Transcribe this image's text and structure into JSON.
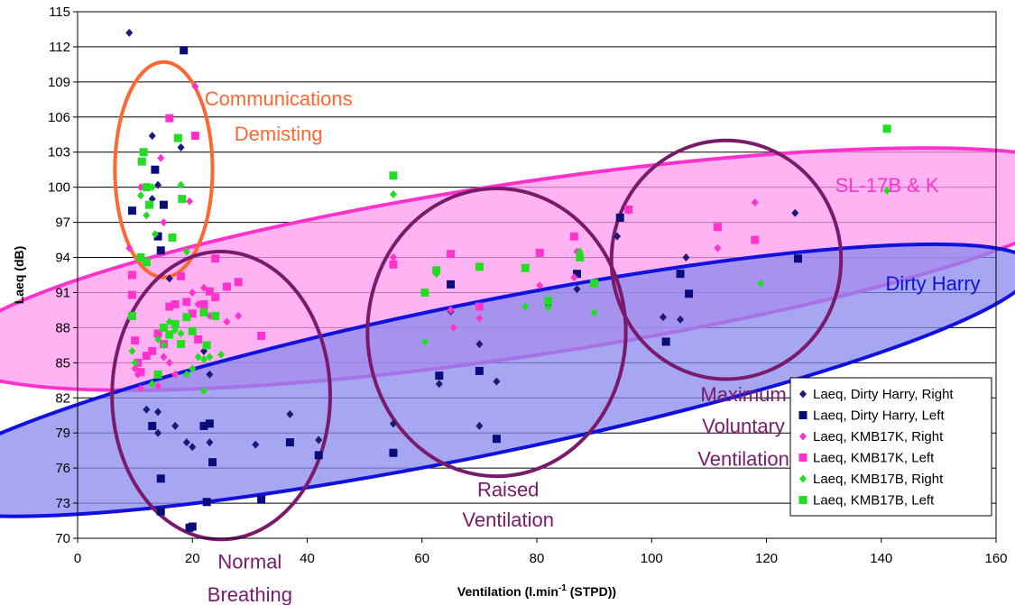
{
  "chart_data": {
    "type": "scatter",
    "xlabel": "Ventilation (l.min",
    "xlabel_sup": "-1",
    "xlabel_tail": " (STPD))",
    "ylabel": "Laeq (dB)",
    "xlim": [
      0,
      160
    ],
    "ylim": [
      70,
      115
    ],
    "xticks": [
      "0",
      "20",
      "40",
      "60",
      "80",
      "100",
      "120",
      "140",
      "160"
    ],
    "yticks": [
      "70",
      "73",
      "76",
      "79",
      "82",
      "85",
      "88",
      "91",
      "94",
      "97",
      "100",
      "103",
      "106",
      "109",
      "112",
      "115"
    ],
    "grid": "horizontal",
    "legend_position": "bottom-right",
    "series": [
      {
        "name": "Laeq, Dirty Harry, Right",
        "color": "#1a1a7a",
        "marker": "diamond",
        "points": [
          [
            9,
            113.2
          ],
          [
            13,
            104.4
          ],
          [
            14,
            100.2
          ],
          [
            18,
            103.4
          ],
          [
            13,
            99
          ],
          [
            16,
            92.2
          ],
          [
            12,
            81
          ],
          [
            14,
            80.8
          ],
          [
            17,
            79.6
          ],
          [
            14,
            79
          ],
          [
            19,
            78.2
          ],
          [
            20,
            77.8
          ],
          [
            23,
            78.2
          ],
          [
            22,
            86
          ],
          [
            23,
            84
          ],
          [
            31,
            78
          ],
          [
            37,
            80.6
          ],
          [
            42,
            78.4
          ],
          [
            55,
            79.8
          ],
          [
            63,
            83.2
          ],
          [
            65,
            89.4
          ],
          [
            73,
            83.4
          ],
          [
            70,
            79.6
          ],
          [
            70,
            86.6
          ],
          [
            82,
            90
          ],
          [
            87,
            91.3
          ],
          [
            94,
            95.8
          ],
          [
            102,
            88.9
          ],
          [
            105,
            88.7
          ],
          [
            106,
            94
          ],
          [
            125,
            97.8
          ]
        ]
      },
      {
        "name": "Laeq, Dirty Harry, Left",
        "color": "#0b0b7a",
        "marker": "square",
        "points": [
          [
            18.5,
            111.7
          ],
          [
            9.5,
            98
          ],
          [
            13.5,
            101.5
          ],
          [
            14,
            95.8
          ],
          [
            14.5,
            94.6
          ],
          [
            15,
            98.5
          ],
          [
            13,
            79.6
          ],
          [
            14.5,
            75.1
          ],
          [
            14.5,
            72.3
          ],
          [
            20,
            71
          ],
          [
            19.5,
            70.9
          ],
          [
            22,
            79.6
          ],
          [
            23,
            79.8
          ],
          [
            23.5,
            76.5
          ],
          [
            22.5,
            73.1
          ],
          [
            32,
            73.3
          ],
          [
            37,
            78.2
          ],
          [
            42,
            77.1
          ],
          [
            55,
            77.3
          ],
          [
            63,
            83.9
          ],
          [
            65,
            91.7
          ],
          [
            70,
            84.3
          ],
          [
            73,
            78.5
          ],
          [
            87,
            92.6
          ],
          [
            94.5,
            97.4
          ],
          [
            102.5,
            86.8
          ],
          [
            105,
            92.6
          ],
          [
            106.5,
            90.9
          ],
          [
            125.5,
            93.9
          ]
        ]
      },
      {
        "name": "Laeq, KMB17K, Right",
        "color": "#ff33cc",
        "marker": "diamond",
        "points": [
          [
            9,
            94.8
          ],
          [
            11,
            100
          ],
          [
            14.5,
            102.5
          ],
          [
            15,
            97
          ],
          [
            19.5,
            98.8
          ],
          [
            20.5,
            108.6
          ],
          [
            10,
            84.5
          ],
          [
            10.5,
            84
          ],
          [
            11,
            82.8
          ],
          [
            12,
            85.6
          ],
          [
            14,
            83
          ],
          [
            15,
            85.5
          ],
          [
            16,
            85
          ],
          [
            17,
            84
          ],
          [
            20,
            91
          ],
          [
            21,
            90
          ],
          [
            22,
            91.4
          ],
          [
            23,
            89
          ],
          [
            26,
            88.5
          ],
          [
            28,
            89
          ],
          [
            55,
            94
          ],
          [
            65,
            89.5
          ],
          [
            65.5,
            88
          ],
          [
            70,
            88.8
          ],
          [
            80.5,
            91.6
          ],
          [
            86.5,
            92.3
          ],
          [
            87,
            94.5
          ],
          [
            96,
            98
          ],
          [
            111.5,
            94.8
          ],
          [
            118,
            98.7
          ]
        ]
      },
      {
        "name": "Laeq, KMB17K, Left",
        "color": "#ff33cc",
        "marker": "square",
        "points": [
          [
            16,
            105.9
          ],
          [
            20.5,
            104.4
          ],
          [
            9.5,
            92.5
          ],
          [
            9.5,
            90.8
          ],
          [
            10,
            86.9
          ],
          [
            10.5,
            85
          ],
          [
            11,
            84.2
          ],
          [
            12,
            85.6
          ],
          [
            13,
            86
          ],
          [
            14,
            87.5
          ],
          [
            15,
            86.6
          ],
          [
            16,
            89.8
          ],
          [
            17,
            90
          ],
          [
            18,
            92.4
          ],
          [
            19,
            90.2
          ],
          [
            20,
            89.2
          ],
          [
            21,
            87
          ],
          [
            22,
            90
          ],
          [
            23,
            91.1
          ],
          [
            24,
            90.6
          ],
          [
            24,
            93.9
          ],
          [
            26,
            91.5
          ],
          [
            28,
            91.9
          ],
          [
            32,
            87.3
          ],
          [
            55,
            93.4
          ],
          [
            65,
            94.3
          ],
          [
            70,
            89.8
          ],
          [
            80.5,
            94.4
          ],
          [
            86.5,
            95.8
          ],
          [
            96,
            98.1
          ],
          [
            111.5,
            96.6
          ],
          [
            118,
            95.5
          ]
        ]
      },
      {
        "name": "Laeq, KMB17B, Right",
        "color": "#22dd22",
        "marker": "diamond",
        "points": [
          [
            11,
            99.3
          ],
          [
            12,
            97.6
          ],
          [
            13,
            100
          ],
          [
            13.5,
            96
          ],
          [
            18,
            100.2
          ],
          [
            19,
            94.5
          ],
          [
            9.5,
            86
          ],
          [
            10,
            85
          ],
          [
            13,
            83.2
          ],
          [
            14,
            87
          ],
          [
            15,
            86.5
          ],
          [
            16,
            88.5
          ],
          [
            17,
            87.8
          ],
          [
            18,
            87.5
          ],
          [
            19,
            84
          ],
          [
            20,
            84.5
          ],
          [
            21,
            85.5
          ],
          [
            22,
            82.6
          ],
          [
            22,
            85.3
          ],
          [
            23,
            85.5
          ],
          [
            25,
            85.7
          ],
          [
            55,
            99.4
          ],
          [
            60.5,
            86.8
          ],
          [
            62.5,
            92.6
          ],
          [
            78,
            89.8
          ],
          [
            82,
            89.7
          ],
          [
            87.5,
            94.5
          ],
          [
            90,
            89.3
          ],
          [
            119,
            91.8
          ],
          [
            141,
            99.7
          ]
        ]
      },
      {
        "name": "Laeq, KMB17B, Left",
        "color": "#22dd22",
        "marker": "square",
        "points": [
          [
            11.5,
            103
          ],
          [
            11.2,
            102.2
          ],
          [
            12,
            100
          ],
          [
            12.5,
            98.5
          ],
          [
            17.5,
            104.2
          ],
          [
            18.2,
            99
          ],
          [
            16.5,
            95.7
          ],
          [
            9.5,
            89
          ],
          [
            11,
            94
          ],
          [
            12,
            93.6
          ],
          [
            14,
            84
          ],
          [
            15,
            88
          ],
          [
            16,
            87.4
          ],
          [
            17,
            88.3
          ],
          [
            18,
            86.6
          ],
          [
            19,
            88.9
          ],
          [
            20,
            87.7
          ],
          [
            22,
            89.3
          ],
          [
            22.5,
            86.5
          ],
          [
            24,
            89
          ],
          [
            55,
            101
          ],
          [
            60.5,
            91
          ],
          [
            62.5,
            92.9
          ],
          [
            70,
            93.2
          ],
          [
            78,
            93.1
          ],
          [
            82,
            90.3
          ],
          [
            87.5,
            94
          ],
          [
            90,
            91.8
          ],
          [
            141,
            105
          ]
        ]
      }
    ],
    "annotations": [
      {
        "text": "Communications",
        "color": "#ff6633",
        "x": 35,
        "y": 107
      },
      {
        "text": "Demisting",
        "color": "#ff6633",
        "x": 35,
        "y": 104
      },
      {
        "text": "SL-17B & K",
        "color": "#ff33cc",
        "x": 141,
        "y": 99.6
      },
      {
        "text": "Dirty Harry",
        "color": "#1111dd",
        "x": 149,
        "y": 91.2
      },
      {
        "text": "Maximum",
        "color": "#7a1a6b",
        "x": 116,
        "y": 81.7
      },
      {
        "text": "Voluntary",
        "color": "#7a1a6b",
        "x": 116,
        "y": 79
      },
      {
        "text": "Ventilation",
        "color": "#7a1a6b",
        "x": 116,
        "y": 76.2
      },
      {
        "text": "Raised",
        "color": "#7a1a6b",
        "x": 75,
        "y": 73.6
      },
      {
        "text": "Ventilation",
        "color": "#7a1a6b",
        "x": 75,
        "y": 71
      },
      {
        "text": "Normal",
        "color": "#7a1a6b",
        "x": 30,
        "y": 67.4
      },
      {
        "text": "Breathing",
        "color": "#7a1a6b",
        "x": 30,
        "y": 64.6
      }
    ],
    "ellipses": [
      {
        "name": "ellipse-communications",
        "cx": 15,
        "cy": 101.5,
        "rx": 8.5,
        "ry": 9.2,
        "angle": 0,
        "fill": "none",
        "stroke": "#ff6633"
      },
      {
        "name": "ellipse-sl17bk",
        "cx": 78,
        "cy": 93,
        "rx": 101,
        "ry": 7.4,
        "angle": -8.5,
        "fill": "#ff99ee",
        "stroke": "#ff33cc"
      },
      {
        "name": "ellipse-dirty-harry",
        "cx": 69,
        "cy": 83.5,
        "rx": 99.5,
        "ry": 6.5,
        "angle": -11.5,
        "fill": "#8888ee",
        "stroke": "#1111dd"
      },
      {
        "name": "ellipse-normal-breathing",
        "cx": 25,
        "cy": 82.2,
        "rx": 19,
        "ry": 12.3,
        "angle": 0,
        "fill": "none",
        "stroke": "#7a1a6b"
      },
      {
        "name": "ellipse-raised-ventilation",
        "cx": 73,
        "cy": 87.6,
        "rx": 22.5,
        "ry": 12.3,
        "angle": 0,
        "fill": "none",
        "stroke": "#7a1a6b"
      },
      {
        "name": "ellipse-max-voluntary",
        "cx": 113,
        "cy": 93.8,
        "rx": 20,
        "ry": 10.2,
        "angle": 0,
        "fill": "none",
        "stroke": "#7a1a6b"
      }
    ]
  }
}
